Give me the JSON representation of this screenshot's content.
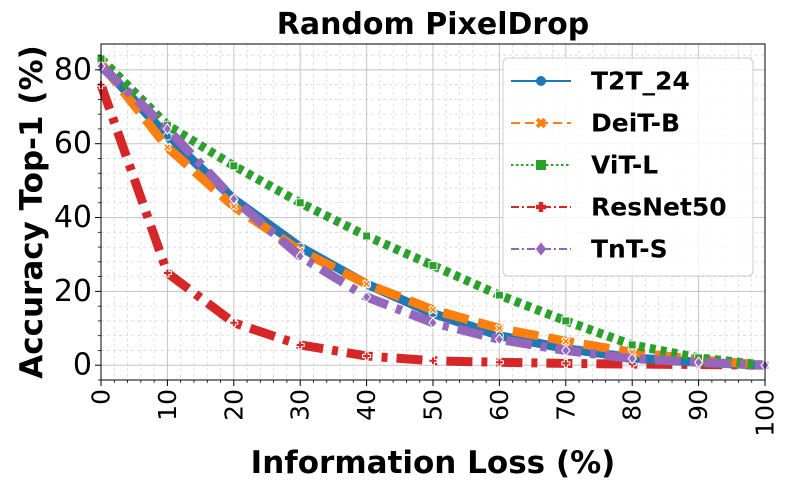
{
  "chart_data": {
    "type": "line",
    "title": "Random PixelDrop",
    "xlabel": "Information Loss (%)",
    "ylabel": "Accuracy Top-1 (%)",
    "xlim": [
      0,
      100
    ],
    "ylim": [
      -4,
      87
    ],
    "xticks": [
      0,
      10,
      20,
      30,
      40,
      50,
      60,
      70,
      80,
      90,
      100
    ],
    "yticks": [
      0,
      20,
      40,
      60,
      80
    ],
    "grid": true,
    "legend_position": "top-right",
    "x": [
      0,
      10,
      20,
      30,
      40,
      50,
      60,
      70,
      80,
      90,
      100
    ],
    "series": [
      {
        "name": "T2T_24",
        "color": "#1f77b4",
        "linestyle": "solid",
        "marker": "circle",
        "values": [
          81.5,
          62,
          45,
          32,
          22,
          14,
          8,
          4.5,
          2,
          0.8,
          0
        ]
      },
      {
        "name": "DeiT-B",
        "color": "#ff7f0e",
        "linestyle": "dashed",
        "marker": "x",
        "values": [
          81.8,
          59,
          43,
          31,
          22,
          15,
          10,
          6.5,
          3.5,
          1.5,
          0
        ]
      },
      {
        "name": "ViT-L",
        "color": "#2ca02c",
        "linestyle": "dotted",
        "marker": "square",
        "values": [
          83,
          65,
          54,
          44,
          35,
          27,
          19,
          12,
          5.5,
          2,
          0
        ]
      },
      {
        "name": "ResNet50",
        "color": "#d62728",
        "linestyle": "dashdot",
        "marker": "plus",
        "values": [
          76,
          25,
          11.5,
          5.5,
          2.5,
          1.2,
          0.8,
          0.5,
          0.3,
          0.2,
          0
        ]
      },
      {
        "name": "TnT-S",
        "color": "#9467bd",
        "linestyle": "dashdot",
        "marker": "diamond",
        "values": [
          81,
          64,
          45,
          29.5,
          18.5,
          11.5,
          7,
          4,
          1.8,
          0.8,
          0
        ]
      }
    ]
  }
}
